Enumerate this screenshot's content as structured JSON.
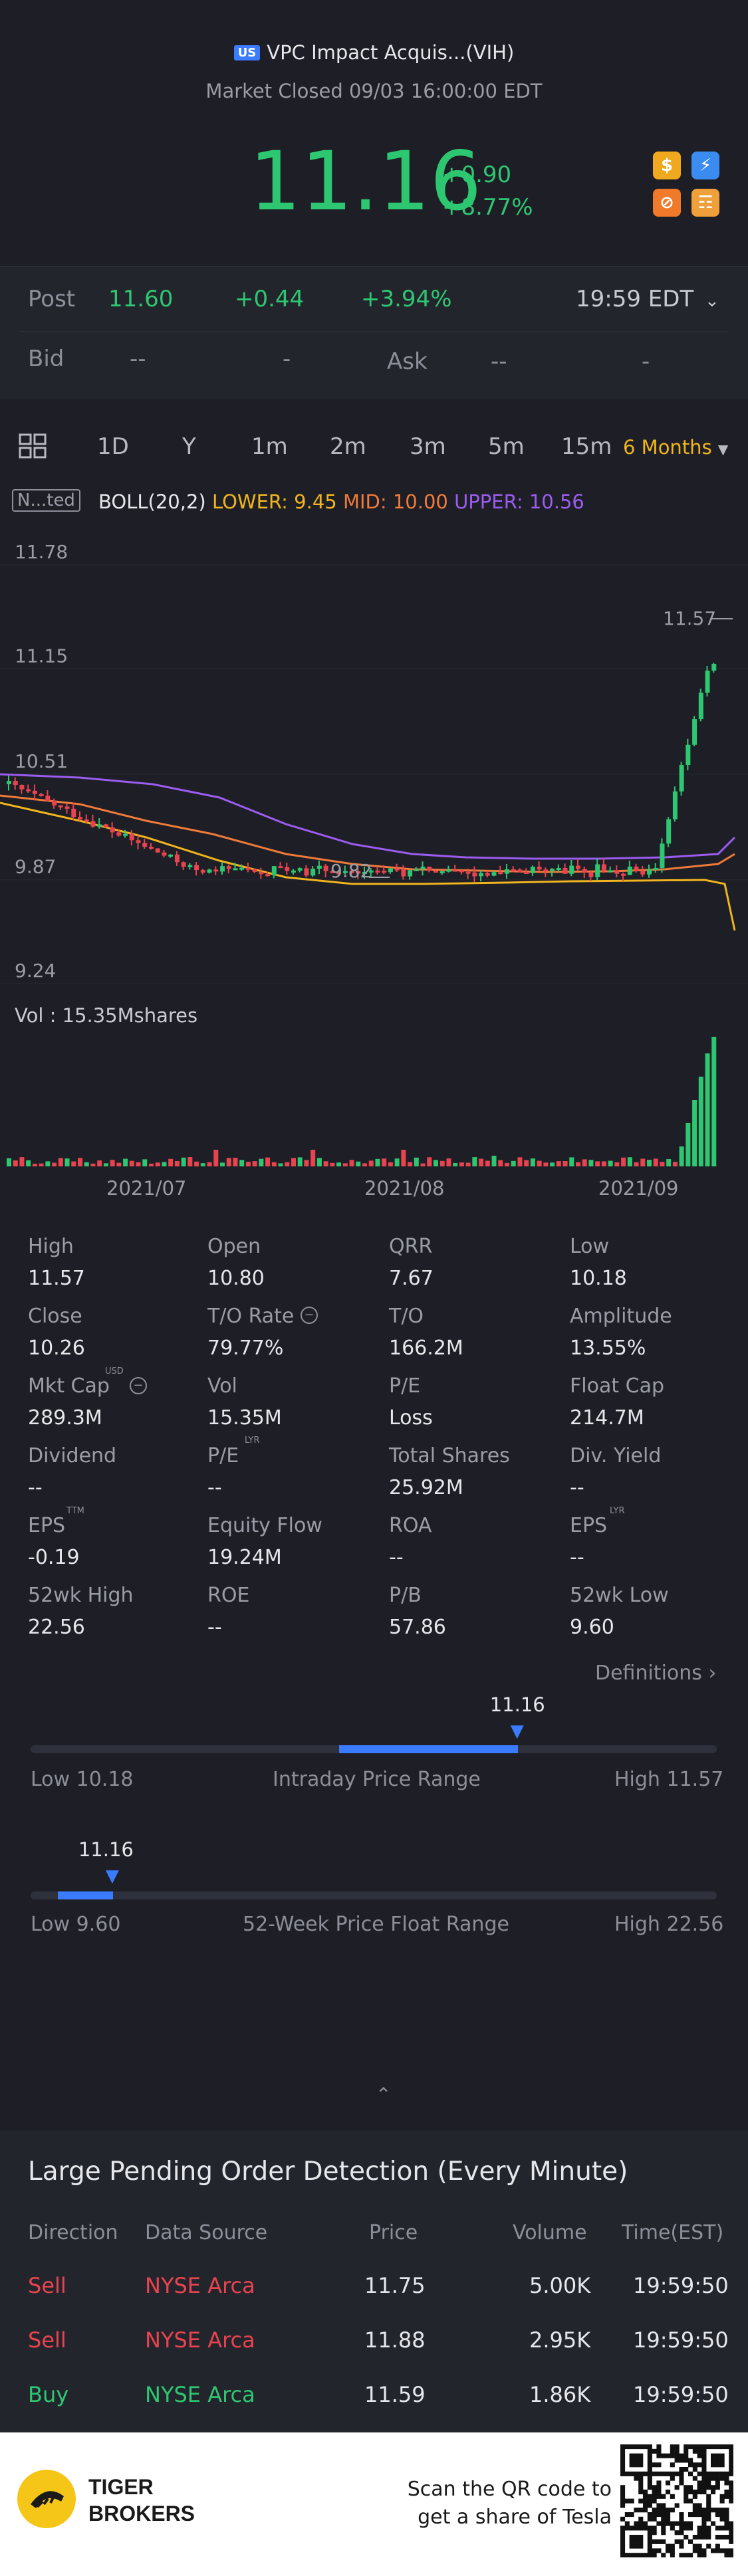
{
  "header": {
    "market_badge": "US",
    "title": "VPC Impact Acquis...(VIH)",
    "status": "Market Closed 09/03 16:00:00 EDT",
    "price": "11.16",
    "change_abs": "+0.90",
    "change_pct": "+8.77%",
    "quick_icons": [
      "dollar-icon",
      "lightning-icon",
      "no-entry-icon",
      "graduation-cap-icon"
    ]
  },
  "post": {
    "label": "Post",
    "price": "11.60",
    "change_abs": "+0.44",
    "change_pct": "+3.94%",
    "time": "19:59 EDT"
  },
  "bid_ask": {
    "bid_label": "Bid",
    "bid_price": "--",
    "bid_size": "-",
    "ask_label": "Ask",
    "ask_price": "--",
    "ask_size": "-"
  },
  "timeframes": {
    "items": [
      "1D",
      "Y",
      "1m",
      "2m",
      "3m",
      "5m",
      "15m"
    ],
    "selected": "6 Months"
  },
  "indicator": {
    "tag": "N...ted",
    "name": "BOLL(20,2)",
    "lower": "LOWER: 9.45",
    "mid": "MID: 10.00",
    "upper": "UPPER: 10.56"
  },
  "chart_data": {
    "type": "candlestick",
    "y_ticks": [
      "11.78",
      "11.15",
      "10.51",
      "9.87",
      "9.24"
    ],
    "ylim": [
      9.24,
      11.78
    ],
    "x_ticks": [
      "2021/07",
      "2021/08",
      "2021/09"
    ],
    "high_marker": "11.57",
    "low_marker": "9.82",
    "volume_label": "Vol  : 15.35Mshares",
    "boll_colors": {
      "upper": "#9b5cf0",
      "mid": "#f07a3a",
      "lower": "#f0b41e"
    },
    "up_color": "#2ec771",
    "down_color": "#e8434f"
  },
  "stats": [
    [
      {
        "label": "High",
        "value": "11.57"
      },
      {
        "label": "Open",
        "value": "10.80"
      },
      {
        "label": "QRR",
        "value": "7.67"
      },
      {
        "label": "Low",
        "value": "10.18"
      }
    ],
    [
      {
        "label": "Close",
        "value": "10.26"
      },
      {
        "label": "T/O Rate",
        "value": "79.77%"
      },
      {
        "label": "T/O",
        "value": "166.2M"
      },
      {
        "label": "Amplitude",
        "value": "13.55%"
      }
    ],
    [
      {
        "label": "Mkt Cap",
        "value": "289.3M"
      },
      {
        "label": "Vol",
        "value": "15.35M"
      },
      {
        "label": "P/E",
        "value": "Loss"
      },
      {
        "label": "Float Cap",
        "value": "214.7M"
      }
    ],
    [
      {
        "label": "Dividend",
        "value": "--"
      },
      {
        "label": "P/E",
        "value": "--"
      },
      {
        "label": "Total Shares",
        "value": "25.92M"
      },
      {
        "label": "Div. Yield",
        "value": "--"
      }
    ],
    [
      {
        "label": "EPS",
        "value": "-0.19"
      },
      {
        "label": "Equity Flow",
        "value": "19.24M"
      },
      {
        "label": "ROA",
        "value": "--"
      },
      {
        "label": "EPS",
        "value": "--"
      }
    ],
    [
      {
        "label": "52wk High",
        "value": "22.56"
      },
      {
        "label": "ROE",
        "value": "--"
      },
      {
        "label": "P/B",
        "value": "57.86"
      },
      {
        "label": "52wk Low",
        "value": "9.60"
      }
    ]
  ],
  "superscripts": {
    "mkt_cap": "USD",
    "pe_lyr": "LYR",
    "eps_ttm": "TTM",
    "eps_lyr": "LYR"
  },
  "definitions_link": "Definitions",
  "intraday_range": {
    "current": "11.16",
    "low_label": "Low 10.18",
    "title": "Intraday Price Range",
    "high_label": "High 11.57",
    "position": 0.71
  },
  "week52_range": {
    "current": "11.16",
    "low_label": "Low 9.60",
    "title": "52-Week Price Float Range",
    "high_label": "High 22.56",
    "position": 0.12
  },
  "pending_orders": {
    "title": "Large Pending Order Detection (Every Minute)",
    "headers": [
      "Direction",
      "Data Source",
      "Price",
      "Volume",
      "Time(EST)"
    ],
    "rows": [
      {
        "direction": "Sell",
        "source": "NYSE Arca",
        "price": "11.75",
        "volume": "5.00K",
        "time": "19:59:50"
      },
      {
        "direction": "Sell",
        "source": "NYSE Arca",
        "price": "11.88",
        "volume": "2.95K",
        "time": "19:59:50"
      },
      {
        "direction": "Buy",
        "source": "NYSE Arca",
        "price": "11.59",
        "volume": "1.86K",
        "time": "19:59:50"
      }
    ]
  },
  "footer": {
    "brand_line1": "TIGER",
    "brand_line2": "BROKERS",
    "promo_line1": "Scan the QR code to",
    "promo_line2": "get a share of Tesla"
  }
}
